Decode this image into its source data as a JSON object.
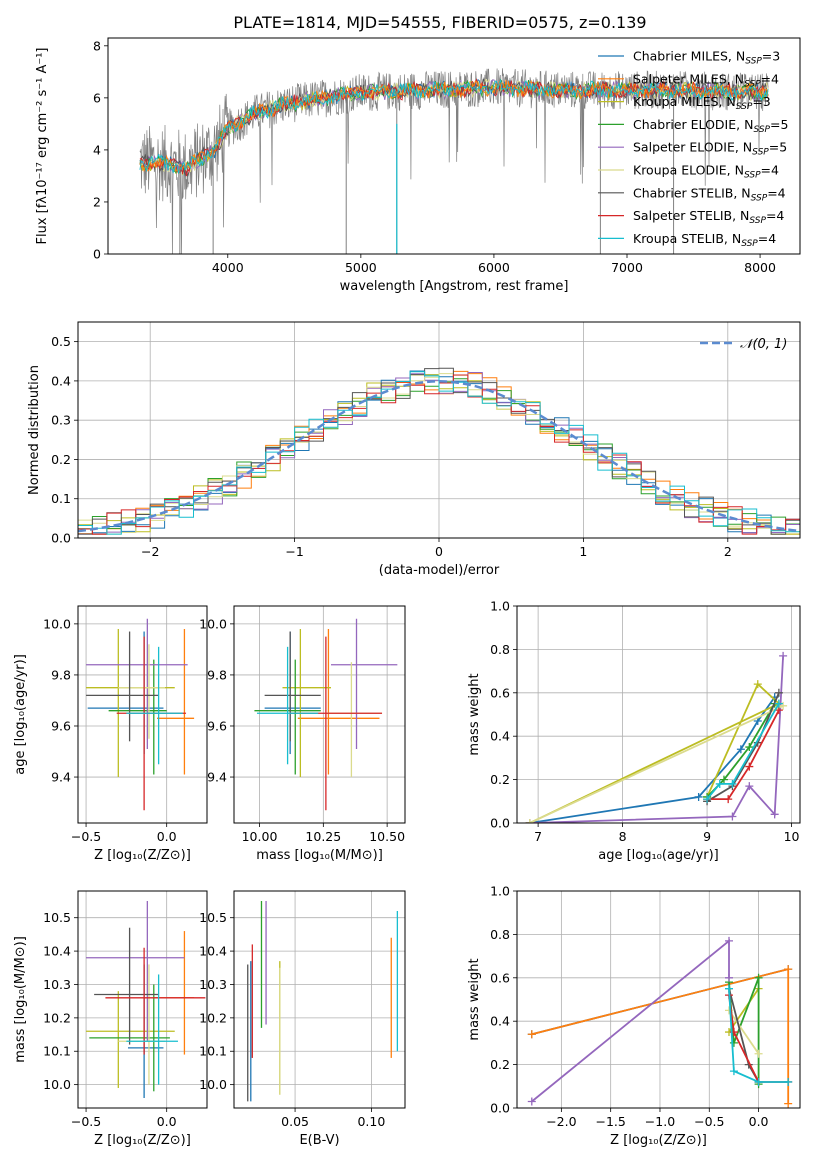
{
  "title": "PLATE=1814, MJD=54555, FIBERID=0575, z=0.139",
  "models": [
    {
      "name": "Chabrier MILES",
      "n": "3",
      "color": "#1f77b4"
    },
    {
      "name": "Salpeter MILES",
      "n": "4",
      "color": "#ff7f0e"
    },
    {
      "name": "Kroupa MILES",
      "n": "3",
      "color": "#bcbd22"
    },
    {
      "name": "Chabrier ELODIE",
      "n": "5",
      "color": "#2ca02c"
    },
    {
      "name": "Salpeter ELODIE",
      "n": "5",
      "color": "#9467bd"
    },
    {
      "name": "Kroupa ELODIE",
      "n": "4",
      "color": "#dbdb8d"
    },
    {
      "name": "Chabrier STELIB",
      "n": "4",
      "color": "#555555"
    },
    {
      "name": "Salpeter STELIB",
      "n": "4",
      "color": "#d62728"
    },
    {
      "name": "Kroupa STELIB",
      "n": "4",
      "color": "#17becf"
    }
  ],
  "chart_data": [
    {
      "type": "line",
      "id": "spectrum",
      "xlabel": "wavelength [Angstrom, rest frame]",
      "ylabel": "Flux [fλ10⁻¹⁷ erg cm⁻² s⁻¹ A⁻¹]",
      "xlim": [
        3100,
        8300
      ],
      "ylim": [
        0,
        8.3
      ],
      "xticks": [
        4000,
        5000,
        6000,
        7000,
        8000
      ],
      "yticks": [
        0,
        2,
        4,
        6,
        8
      ],
      "continuum": {
        "x": [
          3340,
          3500,
          3700,
          3800,
          3900,
          4000,
          4200,
          4400,
          4600,
          5000,
          5500,
          6000,
          6500,
          7000,
          7500,
          8000,
          8060
        ],
        "y": [
          3.5,
          3.5,
          3.3,
          3.7,
          4.0,
          4.8,
          5.4,
          5.7,
          5.9,
          6.2,
          6.3,
          6.4,
          6.3,
          6.3,
          6.3,
          6.2,
          6.3
        ]
      }
    },
    {
      "type": "line",
      "id": "residuals",
      "xlabel": "(data-model)/error",
      "ylabel": "Normed distribution",
      "xlim": [
        -2.5,
        2.5
      ],
      "ylim": [
        0,
        0.55
      ],
      "xticks": [
        -2,
        -1,
        0,
        1,
        2
      ],
      "yticks": [
        0,
        0.1,
        0.2,
        0.3,
        0.4,
        0.5
      ],
      "legend": "𝒩(0, 1)"
    },
    {
      "type": "scatter",
      "id": "age-vs-Z",
      "xlabel": "Z [log₁₀(Z/Z⊙)]",
      "ylabel": "age  [log₁₀(age/yr)]",
      "xlim": [
        -0.55,
        0.25
      ],
      "ylim": [
        9.22,
        10.07
      ],
      "xticks": [
        -0.5,
        0.0
      ],
      "yticks": [
        9.4,
        9.6,
        9.8,
        10.0
      ],
      "points": [
        {
          "x": -0.14,
          "y": 9.67,
          "xerr": [
            0.35,
            0.12
          ],
          "yerr": [
            0.18,
            0.3
          ]
        },
        {
          "x": 0.11,
          "y": 9.63,
          "xerr": [
            0.17,
            0.06
          ],
          "yerr": [
            0.22,
            0.35
          ]
        },
        {
          "x": -0.3,
          "y": 9.75,
          "xerr": [
            0.2,
            0.35
          ],
          "yerr": [
            0.35,
            0.23
          ]
        },
        {
          "x": -0.08,
          "y": 9.66,
          "xerr": [
            0.28,
            0.08
          ],
          "yerr": [
            0.25,
            0.2
          ]
        },
        {
          "x": -0.12,
          "y": 9.84,
          "xerr": [
            0.38,
            0.25
          ],
          "yerr": [
            0.33,
            0.18
          ]
        },
        {
          "x": -0.11,
          "y": 9.75,
          "xerr": [
            0.19,
            0.1
          ],
          "yerr": [
            0.2,
            0.17
          ]
        },
        {
          "x": -0.23,
          "y": 9.72,
          "xerr": [
            0.27,
            0.18
          ],
          "yerr": [
            0.18,
            0.25
          ]
        },
        {
          "x": -0.14,
          "y": 9.65,
          "xerr": [
            0.17,
            0.26
          ],
          "yerr": [
            0.38,
            0.3
          ]
        },
        {
          "x": -0.05,
          "y": 9.65,
          "xerr": [
            0.2,
            0.15
          ],
          "yerr": [
            0.2,
            0.26
          ]
        }
      ]
    },
    {
      "type": "scatter",
      "id": "age-vs-mass",
      "xlabel": "mass [log₁₀(M/M⊙)]",
      "ylabel": "",
      "xlim": [
        9.9,
        10.57
      ],
      "ylim": [
        9.22,
        10.07
      ],
      "xticks": [
        10.0,
        10.25,
        10.5
      ],
      "yticks": [
        9.4,
        9.6,
        9.8,
        10.0
      ],
      "points": [
        {
          "x": 10.12,
          "y": 9.67,
          "xerr": [
            0.1,
            0.12
          ],
          "yerr": [
            0.18,
            0.3
          ]
        },
        {
          "x": 10.27,
          "y": 9.63,
          "xerr": [
            0.12,
            0.2
          ],
          "yerr": [
            0.22,
            0.35
          ]
        },
        {
          "x": 10.16,
          "y": 9.75,
          "xerr": [
            0.07,
            0.12
          ],
          "yerr": [
            0.35,
            0.23
          ]
        },
        {
          "x": 10.14,
          "y": 9.66,
          "xerr": [
            0.16,
            0.1
          ],
          "yerr": [
            0.25,
            0.2
          ]
        },
        {
          "x": 10.38,
          "y": 9.84,
          "xerr": [
            0.1,
            0.16
          ],
          "yerr": [
            0.33,
            0.18
          ]
        },
        {
          "x": 10.36,
          "y": 9.65,
          "xerr": [
            0.1,
            0.12
          ],
          "yerr": [
            0.25,
            0.2
          ]
        },
        {
          "x": 10.12,
          "y": 9.72,
          "xerr": [
            0.1,
            0.12
          ],
          "yerr": [
            0.18,
            0.25
          ]
        },
        {
          "x": 10.26,
          "y": 9.65,
          "xerr": [
            0.14,
            0.22
          ],
          "yerr": [
            0.38,
            0.3
          ]
        },
        {
          "x": 10.11,
          "y": 9.65,
          "xerr": [
            0.12,
            0.12
          ],
          "yerr": [
            0.2,
            0.26
          ]
        }
      ]
    },
    {
      "type": "line",
      "id": "weight-vs-age",
      "xlabel": "age  [log₁₀(age/yr)]",
      "ylabel": "mass weight",
      "xlim": [
        6.75,
        10.1
      ],
      "ylim": [
        0,
        1
      ],
      "xticks": [
        7,
        8,
        9,
        10
      ],
      "yticks": [
        0,
        0.2,
        0.4,
        0.6,
        0.8,
        1.0
      ],
      "series": [
        {
          "x": [
            6.9,
            8.9,
            9.4,
            9.6,
            9.8
          ],
          "y": [
            0.0,
            0.12,
            0.34,
            0.47,
            0.58
          ]
        },
        {
          "x": 6.9,
          "y": 0
        },
        {
          "x": [
            6.9,
            9.85,
            9.6,
            9.0
          ],
          "y": [
            0.0,
            0.55,
            0.64,
            0.12
          ]
        },
        {
          "x": [
            9.0,
            9.2,
            9.5,
            9.8
          ],
          "y": [
            0.12,
            0.2,
            0.35,
            0.55
          ]
        },
        {
          "x": [
            6.9,
            9.3,
            9.5,
            9.8,
            9.9
          ],
          "y": [
            0.0,
            0.03,
            0.17,
            0.04,
            0.77
          ]
        },
        {
          "x": [
            6.9,
            9.9
          ],
          "y": [
            0.0,
            0.54
          ]
        },
        {
          "x": [
            9.0,
            9.3,
            9.6,
            9.85
          ],
          "y": [
            0.1,
            0.17,
            0.37,
            0.6
          ]
        },
        {
          "x": [
            9.0,
            9.25,
            9.5,
            9.85
          ],
          "y": [
            0.11,
            0.11,
            0.26,
            0.52
          ]
        },
        {
          "x": [
            9.0,
            9.15,
            9.3,
            9.85
          ],
          "y": [
            0.11,
            0.18,
            0.18,
            0.55
          ]
        }
      ]
    },
    {
      "type": "scatter",
      "id": "mass-vs-Z",
      "xlabel": "Z [log₁₀(Z/Z⊙)]",
      "ylabel": "mass [log₁₀(M/M⊙)]",
      "xlim": [
        -0.55,
        0.25
      ],
      "ylim": [
        9.93,
        10.58
      ],
      "xticks": [
        -0.5,
        0.0
      ],
      "yticks": [
        10.0,
        10.1,
        10.2,
        10.3,
        10.4,
        10.5
      ],
      "points": [
        {
          "x": -0.14,
          "y": 10.11,
          "xerr": [
            0.1,
            0.12
          ],
          "yerr": [
            0.15,
            0.25
          ]
        },
        {
          "x": 0.11,
          "y": 10.26,
          "xerr": [
            0.18,
            0.06
          ],
          "yerr": [
            0.17,
            0.2
          ]
        },
        {
          "x": -0.3,
          "y": 10.16,
          "xerr": [
            0.2,
            0.35
          ],
          "yerr": [
            0.17,
            0.12
          ]
        },
        {
          "x": -0.08,
          "y": 10.14,
          "xerr": [
            0.4,
            0.1
          ],
          "yerr": [
            0.16,
            0.16
          ]
        },
        {
          "x": -0.12,
          "y": 10.38,
          "xerr": [
            0.38,
            0.23
          ],
          "yerr": [
            0.25,
            0.17
          ]
        },
        {
          "x": -0.11,
          "y": 10.13,
          "xerr": [
            0.19,
            0.1
          ],
          "yerr": [
            0.13,
            0.23
          ]
        },
        {
          "x": -0.23,
          "y": 10.27,
          "xerr": [
            0.22,
            0.18
          ],
          "yerr": [
            0.15,
            0.2
          ]
        },
        {
          "x": -0.14,
          "y": 10.26,
          "xerr": [
            0.24,
            0.38
          ],
          "yerr": [
            0.17,
            0.15
          ]
        },
        {
          "x": -0.05,
          "y": 10.13,
          "xerr": [
            0.2,
            0.12
          ],
          "yerr": [
            0.13,
            0.2
          ]
        }
      ]
    },
    {
      "type": "scatter",
      "id": "mass-vs-EBV",
      "xlabel": "E(B-V)",
      "ylabel": "",
      "xlim": [
        0.01,
        0.122
      ],
      "ylim": [
        9.93,
        10.58
      ],
      "xticks": [
        0.05,
        0.1
      ],
      "yticks": [
        10.0,
        10.1,
        10.2,
        10.3,
        10.4,
        10.5
      ],
      "points": [
        {
          "x": 0.021,
          "y": 10.2,
          "yerr": [
            0.25,
            0.17
          ]
        },
        {
          "x": 0.113,
          "y": 10.26,
          "yerr": [
            0.18,
            0.18
          ]
        },
        {
          "x": 0.04,
          "y": 10.17,
          "yerr": [
            0.2,
            0.2
          ]
        },
        {
          "x": 0.028,
          "y": 10.37,
          "yerr": [
            0.2,
            0.18
          ]
        },
        {
          "x": 0.031,
          "y": 10.4,
          "yerr": [
            0.22,
            0.15
          ]
        },
        {
          "x": 0.04,
          "y": 10.15,
          "yerr": [
            0.18,
            0.2
          ]
        },
        {
          "x": 0.019,
          "y": 10.17,
          "yerr": [
            0.22,
            0.19
          ]
        },
        {
          "x": 0.022,
          "y": 10.28,
          "yerr": [
            0.2,
            0.14
          ]
        },
        {
          "x": 0.117,
          "y": 10.3,
          "yerr": [
            0.2,
            0.22
          ]
        }
      ]
    },
    {
      "type": "line",
      "id": "weight-vs-Z",
      "xlabel": "Z [log₁₀(Z/Z⊙)]",
      "ylabel": "mass weight",
      "xlim": [
        -2.45,
        0.42
      ],
      "ylim": [
        0,
        1
      ],
      "xticks": [
        -2.0,
        -1.5,
        -1.0,
        -0.5,
        0.0
      ],
      "yticks": [
        0,
        0.2,
        0.4,
        0.6,
        0.8,
        1.0
      ],
      "series": [
        {
          "x": [
            -2.3,
            0.3
          ],
          "y": [
            0.34,
            0.64
          ]
        },
        {
          "x": [
            -2.3,
            0.3,
            0.3
          ],
          "y": [
            0.34,
            0.64,
            0.02
          ]
        },
        {
          "x": [
            -0.3,
            0.0
          ],
          "y": [
            0.35,
            0.55
          ]
        },
        {
          "x": [
            -0.3,
            -0.25,
            0.0,
            0.0
          ],
          "y": [
            0.58,
            0.3,
            0.6,
            0.11
          ]
        },
        {
          "x": [
            -2.3,
            -0.3,
            -0.3
          ],
          "y": [
            0.03,
            0.77,
            0.6
          ]
        },
        {
          "x": [
            -0.3,
            0.0
          ],
          "y": [
            0.45,
            0.25
          ]
        },
        {
          "x": [
            -0.3,
            -0.1,
            0.0
          ],
          "y": [
            0.55,
            0.2,
            0.12
          ]
        },
        {
          "x": [
            -0.3,
            -0.25,
            0.0,
            0.3
          ],
          "y": [
            0.52,
            0.35,
            0.12,
            0.12
          ]
        },
        {
          "x": [
            -0.3,
            -0.25,
            0.0,
            0.3
          ],
          "y": [
            0.55,
            0.17,
            0.12,
            0.12
          ]
        }
      ]
    }
  ]
}
